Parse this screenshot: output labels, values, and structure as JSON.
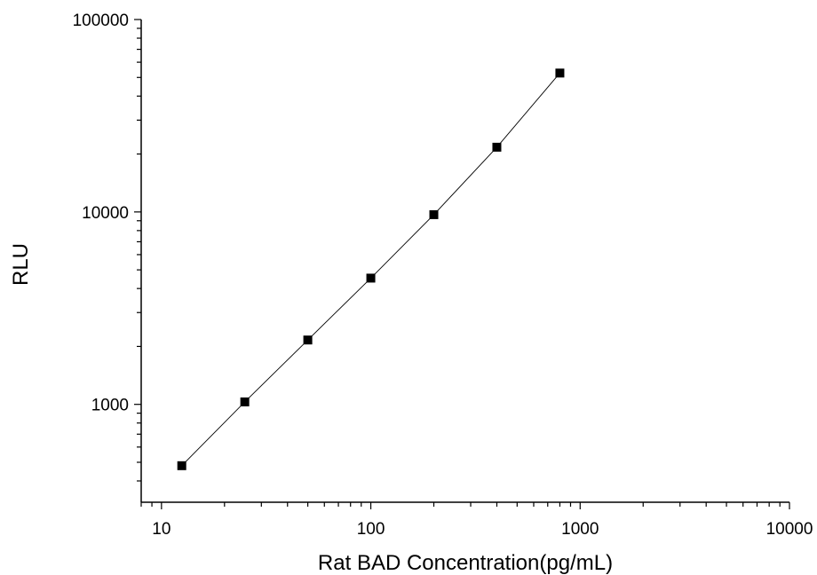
{
  "chart_data": {
    "type": "scatter",
    "title": "",
    "xlabel": "Rat BAD Concentration(pg/mL)",
    "ylabel": "RLU",
    "xscale": "log",
    "yscale": "log",
    "xlim": [
      8,
      10000
    ],
    "ylim": [
      310,
      100000
    ],
    "xticks": [
      10,
      100,
      1000,
      10000
    ],
    "xtick_labels": [
      "10",
      "100",
      "1000",
      "10000"
    ],
    "yticks": [
      1000,
      10000,
      100000
    ],
    "ytick_labels": [
      "1000",
      "10000",
      "100000"
    ],
    "grid": false,
    "legend": "none",
    "series": [
      {
        "x": [
          12.5,
          25,
          50,
          100,
          200,
          400,
          800
        ],
        "y": [
          480,
          1030,
          2160,
          4530,
          9680,
          21700,
          52700
        ],
        "marker": "square",
        "fit_line": true
      }
    ],
    "colors": {
      "axis": "#000000",
      "marker": "#000000",
      "line": "#000000"
    }
  }
}
